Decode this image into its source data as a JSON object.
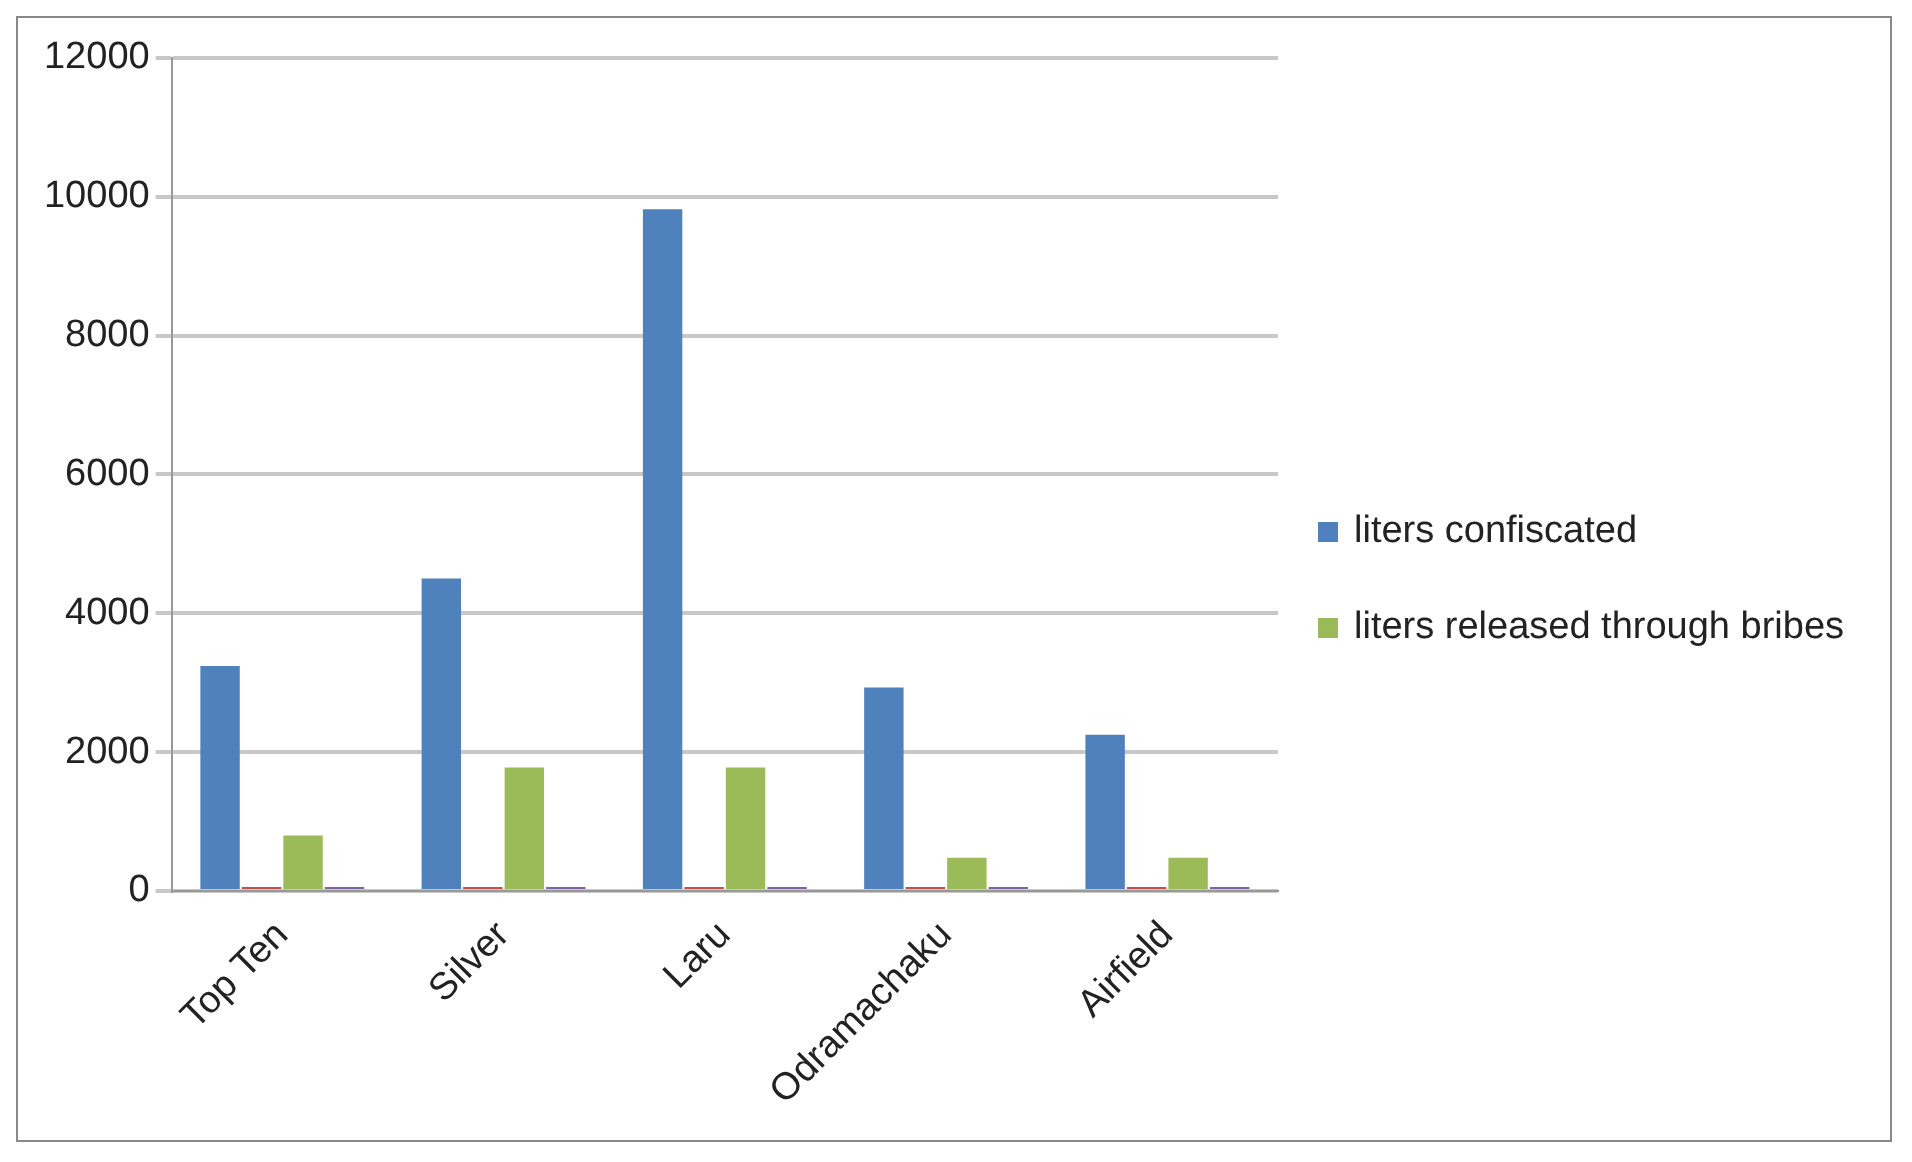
{
  "chart_data": {
    "type": "bar",
    "categories": [
      "Top Ten",
      "Silver",
      "Laru",
      "Odramachaku",
      "Airfield"
    ],
    "series": [
      {
        "name": "liters confiscated",
        "color": "#4f81bd",
        "values": [
          3240,
          4500,
          9820,
          2930,
          2250
        ]
      },
      {
        "color": "#c0504d",
        "values": [
          0,
          0,
          0,
          0,
          0
        ]
      },
      {
        "name": "liters released through bribes",
        "color": "#9bbb59",
        "values": [
          800,
          1780,
          1780,
          480,
          480
        ]
      },
      {
        "color": "#8064a2",
        "values": [
          0,
          0,
          0,
          0,
          0
        ]
      }
    ],
    "ylim": [
      0,
      12000
    ],
    "yticks": [
      0,
      2000,
      4000,
      6000,
      8000,
      10000,
      12000
    ],
    "grid": "y",
    "legend": "right"
  }
}
